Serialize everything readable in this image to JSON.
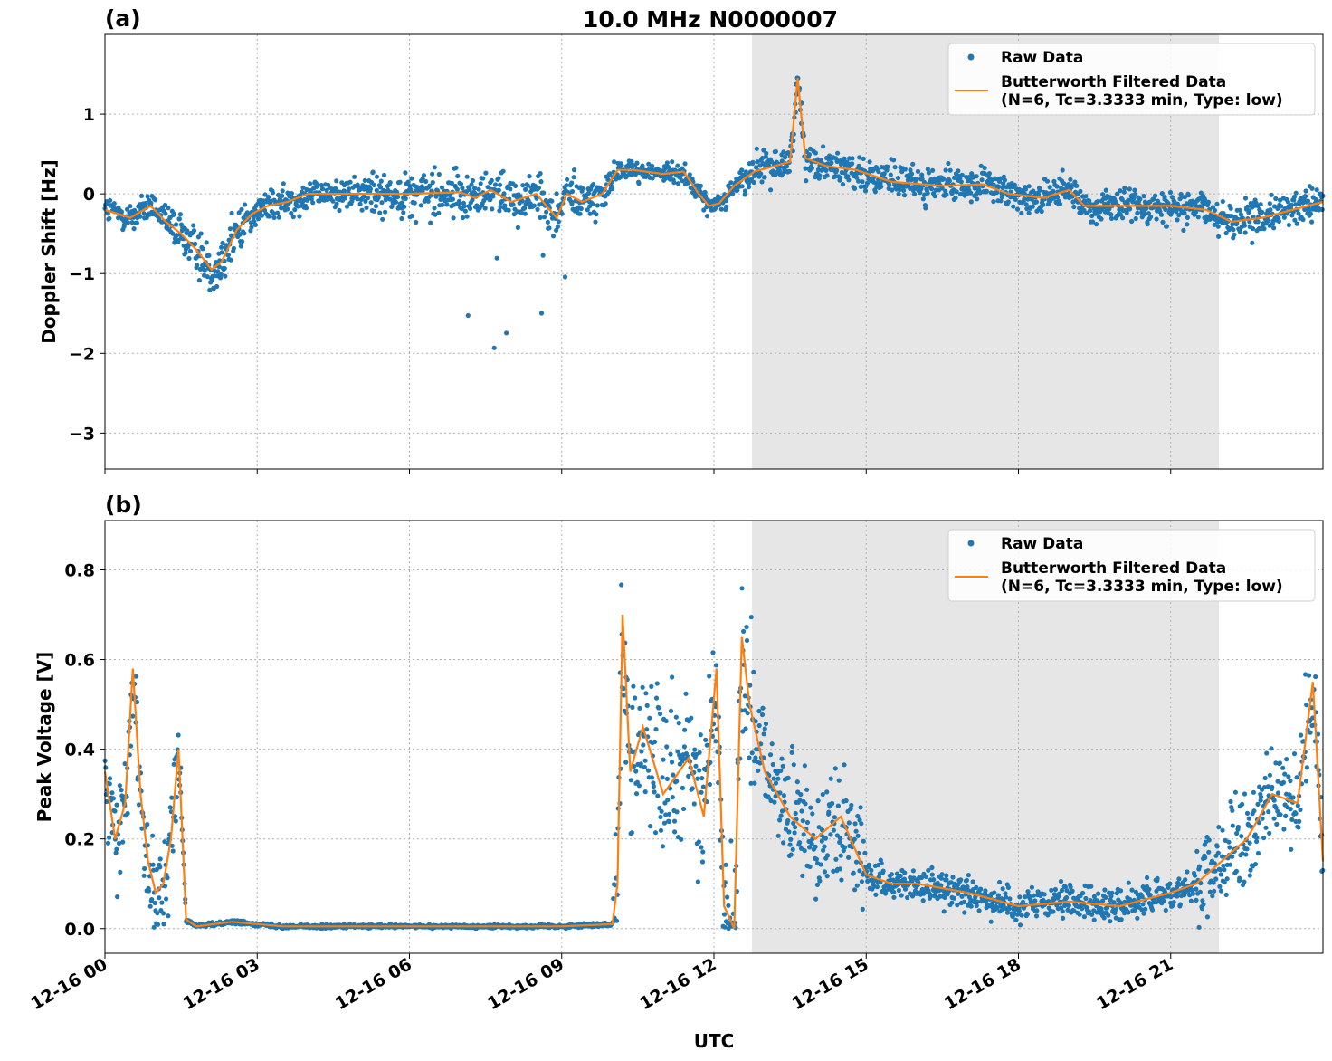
{
  "chart_data": {
    "title": "10.0 MHz N0000007",
    "xlabel": "UTC",
    "x_ticks": [
      "12-16 00",
      "12-16 03",
      "12-16 06",
      "12-16 09",
      "12-16 12",
      "12-16 15",
      "12-16 18",
      "12-16 21"
    ],
    "x_tick_hours": [
      0,
      3,
      6,
      9,
      12,
      15,
      18,
      21
    ],
    "xlim_hours": [
      0,
      24
    ],
    "shaded_region_hours": [
      12.75,
      21.95
    ],
    "grid": true,
    "legend": {
      "placement": "upper right",
      "raw_label": "Raw Data",
      "filtered_label_line1": "Butterworth Filtered Data",
      "filtered_label_line2": "(N=6, Tc=3.3333 min, Type: low)"
    },
    "colors": {
      "raw": "#1f77b4",
      "filtered": "#ff7f0e",
      "shade": "#e6e6e6"
    },
    "panels": [
      {
        "label": "(a)",
        "type": "scatter+line",
        "ylabel": "Doppler Shift [Hz]",
        "ylim": [
          -3.45,
          2.0
        ],
        "yticks": [
          1,
          0,
          -1,
          -2,
          -3
        ],
        "ytick_labels": [
          "1",
          "0",
          "−1",
          "−2",
          "−3"
        ],
        "filtered": {
          "x": [
            0,
            0.5,
            0.9,
            1.2,
            1.5,
            1.8,
            2.1,
            2.3,
            2.6,
            2.9,
            3.2,
            3.6,
            4.0,
            5.0,
            6.0,
            7.0,
            7.3,
            7.6,
            8.0,
            8.5,
            8.9,
            9.1,
            9.4,
            9.8,
            10.1,
            10.4,
            11.0,
            11.4,
            11.7,
            11.9,
            12.1,
            12.4,
            12.8,
            13.2,
            13.5,
            13.65,
            13.8,
            14.2,
            14.8,
            15.5,
            16.5,
            17.3,
            17.8,
            18.5,
            19.0,
            19.3,
            20.0,
            21.0,
            21.7,
            22.2,
            22.8,
            23.4,
            24.0
          ],
          "y": [
            -0.2,
            -0.3,
            -0.15,
            -0.35,
            -0.5,
            -0.7,
            -0.95,
            -0.85,
            -0.45,
            -0.25,
            -0.15,
            -0.1,
            0.0,
            0.0,
            0.0,
            0.02,
            -0.05,
            0.05,
            -0.1,
            0.0,
            -0.3,
            0.0,
            -0.1,
            0.0,
            0.3,
            0.3,
            0.25,
            0.28,
            0.0,
            -0.15,
            -0.12,
            0.1,
            0.28,
            0.35,
            0.4,
            1.45,
            0.45,
            0.35,
            0.3,
            0.15,
            0.1,
            0.12,
            0.0,
            -0.05,
            0.05,
            -0.15,
            -0.15,
            -0.15,
            -0.2,
            -0.35,
            -0.3,
            -0.2,
            -0.1
          ]
        }
      },
      {
        "label": "(b)",
        "type": "scatter+line",
        "ylabel": "Peak Voltage [V]",
        "ylim": [
          -0.055,
          0.91
        ],
        "yticks": [
          0.8,
          0.6,
          0.4,
          0.2,
          0.0
        ],
        "ytick_labels": [
          "0.8",
          "0.6",
          "0.4",
          "0.2",
          "0.0"
        ],
        "filtered": {
          "x": [
            0,
            0.2,
            0.4,
            0.55,
            0.7,
            0.85,
            1.0,
            1.15,
            1.3,
            1.45,
            1.6,
            1.8,
            2.5,
            3.5,
            5.0,
            7.0,
            9.0,
            10.0,
            10.1,
            10.2,
            10.35,
            10.6,
            11.0,
            11.5,
            11.8,
            12.05,
            12.2,
            12.4,
            12.55,
            12.7,
            13.0,
            13.5,
            14.0,
            14.5,
            15.0,
            15.5,
            16.0,
            17.0,
            18.0,
            19.0,
            20.0,
            21.0,
            21.5,
            22.0,
            22.5,
            23.0,
            23.5,
            23.8,
            24.0
          ],
          "y": [
            0.35,
            0.2,
            0.28,
            0.58,
            0.3,
            0.15,
            0.08,
            0.1,
            0.2,
            0.4,
            0.02,
            0.005,
            0.015,
            0.005,
            0.005,
            0.005,
            0.005,
            0.01,
            0.1,
            0.7,
            0.35,
            0.45,
            0.3,
            0.38,
            0.25,
            0.58,
            0.05,
            0.0,
            0.65,
            0.5,
            0.35,
            0.25,
            0.2,
            0.25,
            0.12,
            0.1,
            0.1,
            0.08,
            0.05,
            0.06,
            0.05,
            0.08,
            0.1,
            0.15,
            0.2,
            0.3,
            0.28,
            0.55,
            0.15
          ]
        }
      }
    ]
  }
}
